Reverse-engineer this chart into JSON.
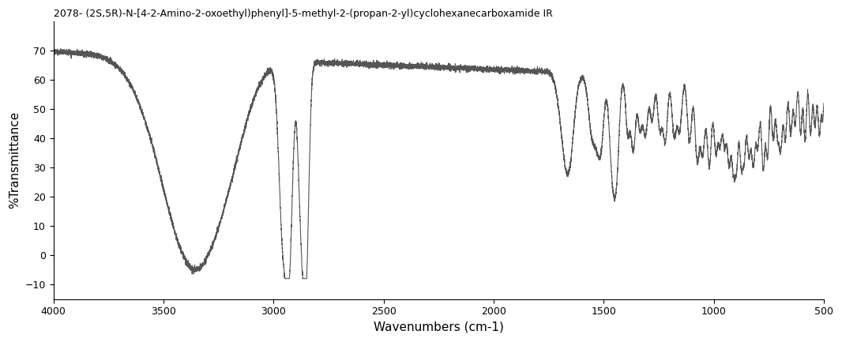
{
  "title": "2078- (2S,5R)-N-[4-2-Amino-2-oxoethyl)phenyl]-5-methyl-2-(propan-2-yl)cyclohexanecarboxamide IR",
  "xlabel": "Wavenumbers (cm-1)",
  "ylabel": "%Transmittance",
  "xlim": [
    4000,
    500
  ],
  "ylim": [
    -15,
    80
  ],
  "yticks": [
    -10,
    0,
    10,
    20,
    30,
    40,
    50,
    60,
    70
  ],
  "xticks": [
    4000,
    3500,
    3000,
    2500,
    2000,
    1500,
    1000,
    500
  ],
  "line_color": "#555555",
  "background_color": "#ffffff",
  "title_fontsize": 9,
  "axis_fontsize": 11
}
